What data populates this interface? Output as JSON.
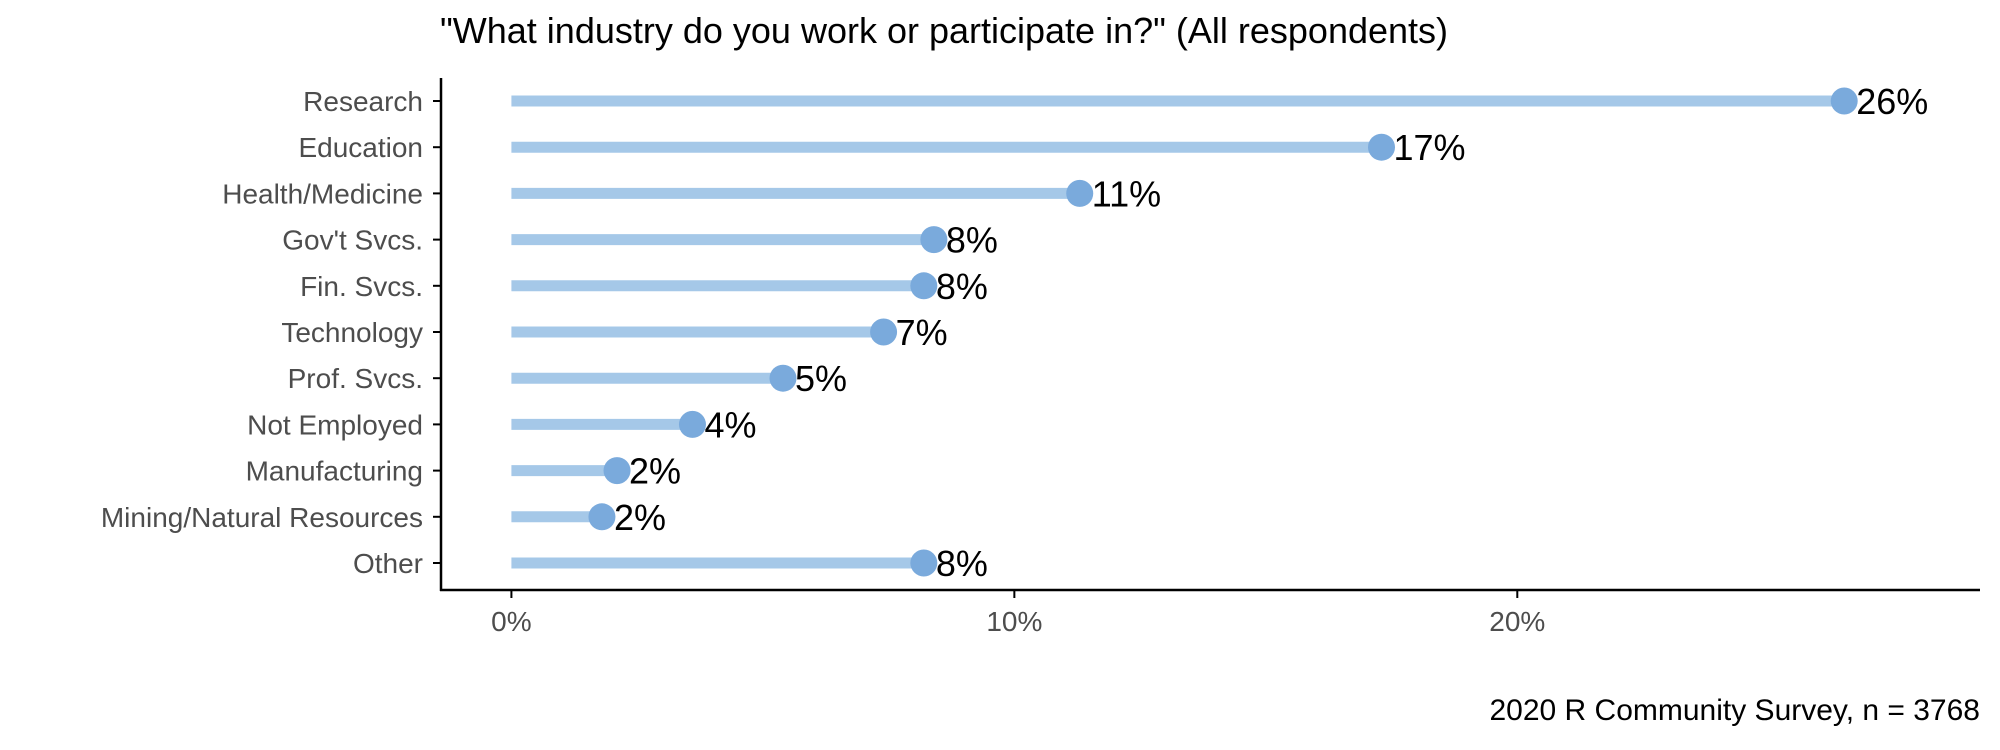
{
  "chart_data": {
    "type": "lollipop",
    "title": "\"What industry do you work or participate in?\" (All respondents)",
    "caption": "2020 R Community Survey, n = 3768",
    "categories": [
      "Research",
      "Education",
      "Health/Medicine",
      "Gov't Svcs.",
      "Fin. Svcs.",
      "Technology",
      "Prof. Svcs.",
      "Not Employed",
      "Manufacturing",
      "Mining/Natural Resources",
      "Other"
    ],
    "values": [
      26.5,
      17.3,
      11.3,
      8.4,
      8.2,
      7.4,
      5.4,
      3.6,
      2.1,
      1.8,
      8.2
    ],
    "value_labels": [
      "26%",
      "17%",
      "11%",
      "8%",
      "8%",
      "7%",
      "5%",
      "4%",
      "2%",
      "2%",
      "8%"
    ],
    "xlabel": "",
    "ylabel": "",
    "xlim": [
      -1.4,
      29.2
    ],
    "x_ticks": [
      0,
      10,
      20
    ],
    "x_tick_labels": [
      "0%",
      "10%",
      "20%"
    ],
    "grid": false,
    "legend": "none",
    "colors": {
      "segment": "#a5c8e8",
      "point": "#7aaadc",
      "axis": "#000000",
      "text": "#4d4d4d"
    }
  }
}
